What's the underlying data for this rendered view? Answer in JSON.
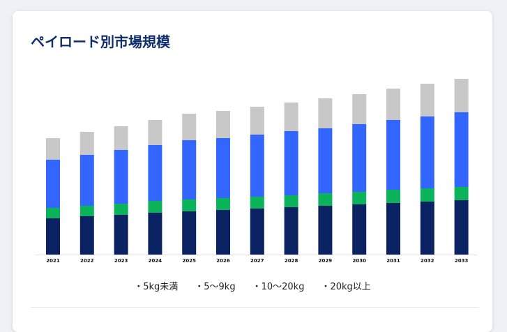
{
  "title": "ペイロード別市場規模",
  "chart_data": {
    "type": "bar",
    "stacked": true,
    "title": "ペイロード別市場規模",
    "xlabel": "",
    "ylabel": "",
    "grid": false,
    "legend_position": "bottom",
    "categories": [
      "2021",
      "2022",
      "2023",
      "2024",
      "2025",
      "2026",
      "2027",
      "2028",
      "2029",
      "2030",
      "2031",
      "2032",
      "2033"
    ],
    "series": [
      {
        "name": "・5kg未満",
        "color": "#0b2262",
        "values": [
          52,
          55,
          57,
          60,
          62,
          64,
          66,
          68,
          70,
          72,
          74,
          76,
          78
        ]
      },
      {
        "name": "・5〜9kg",
        "color": "#0bb35a",
        "values": [
          15,
          15,
          16,
          17,
          17,
          17,
          17,
          17,
          18,
          18,
          19,
          19,
          19
        ]
      },
      {
        "name": "・10〜20kg",
        "color": "#3366ff",
        "values": [
          69,
          73,
          77,
          80,
          85,
          86,
          89,
          92,
          93,
          97,
          100,
          103,
          107
        ]
      },
      {
        "name": "・20kg以上",
        "color": "#c8c8c8",
        "values": [
          31,
          33,
          34,
          36,
          38,
          39,
          40,
          41,
          43,
          43,
          45,
          47,
          48
        ]
      }
    ],
    "ylim": [
      0,
      260
    ]
  }
}
